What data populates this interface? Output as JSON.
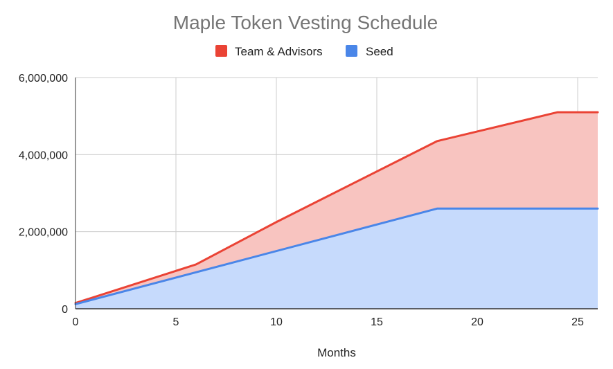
{
  "chart_data": {
    "type": "area",
    "title": "Maple Token Vesting Schedule",
    "xlabel": "Months",
    "ylabel": "",
    "xlim": [
      0,
      26
    ],
    "ylim": [
      0,
      6000000
    ],
    "grid": true,
    "stacked": true,
    "legend_position": "top",
    "x_ticks": [
      0,
      5,
      10,
      15,
      20,
      25
    ],
    "x_tick_labels": [
      "0",
      "5",
      "10",
      "15",
      "20",
      "25"
    ],
    "y_ticks": [
      0,
      2000000,
      4000000,
      6000000
    ],
    "y_tick_labels": [
      "0",
      "2,000,000",
      "4,000,000",
      "6,000,000"
    ],
    "series": [
      {
        "name": "Team & Advisors",
        "color": "#ea4335",
        "fill": "#f8c4c0",
        "x": [
          0,
          6,
          10,
          18,
          24,
          26
        ],
        "values": [
          150000,
          1150000,
          2250000,
          4350000,
          5100000,
          5100000
        ]
      },
      {
        "name": "Seed",
        "color": "#4a86e8",
        "fill": "#c6dafc",
        "x": [
          0,
          18,
          26
        ],
        "values": [
          120000,
          2600000,
          2600000
        ]
      }
    ]
  }
}
